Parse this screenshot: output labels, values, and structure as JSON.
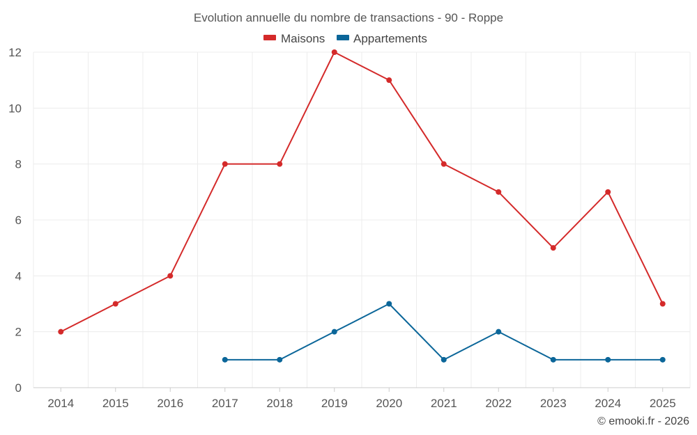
{
  "chart_data": {
    "type": "line",
    "title": "Evolution annuelle du nombre de transactions - 90 - Roppe",
    "categories": [
      "2014",
      "2015",
      "2016",
      "2017",
      "2018",
      "2019",
      "2020",
      "2021",
      "2022",
      "2023",
      "2024",
      "2025"
    ],
    "series": [
      {
        "name": "Maisons",
        "color": "#d42a2a",
        "values": [
          2,
          3,
          4,
          8,
          8,
          12,
          11,
          8,
          7,
          5,
          7,
          3
        ]
      },
      {
        "name": "Appartements",
        "color": "#0b6699",
        "values": [
          null,
          null,
          null,
          1,
          1,
          2,
          3,
          1,
          2,
          1,
          1,
          1
        ]
      }
    ],
    "yticks": [
      "0",
      "2",
      "4",
      "6",
      "8",
      "10",
      "12"
    ],
    "ylim": [
      0,
      12
    ],
    "xlabel": "",
    "ylabel": "",
    "legend_position": "top-center",
    "grid": true
  },
  "credit": "© emooki.fr - 2026"
}
